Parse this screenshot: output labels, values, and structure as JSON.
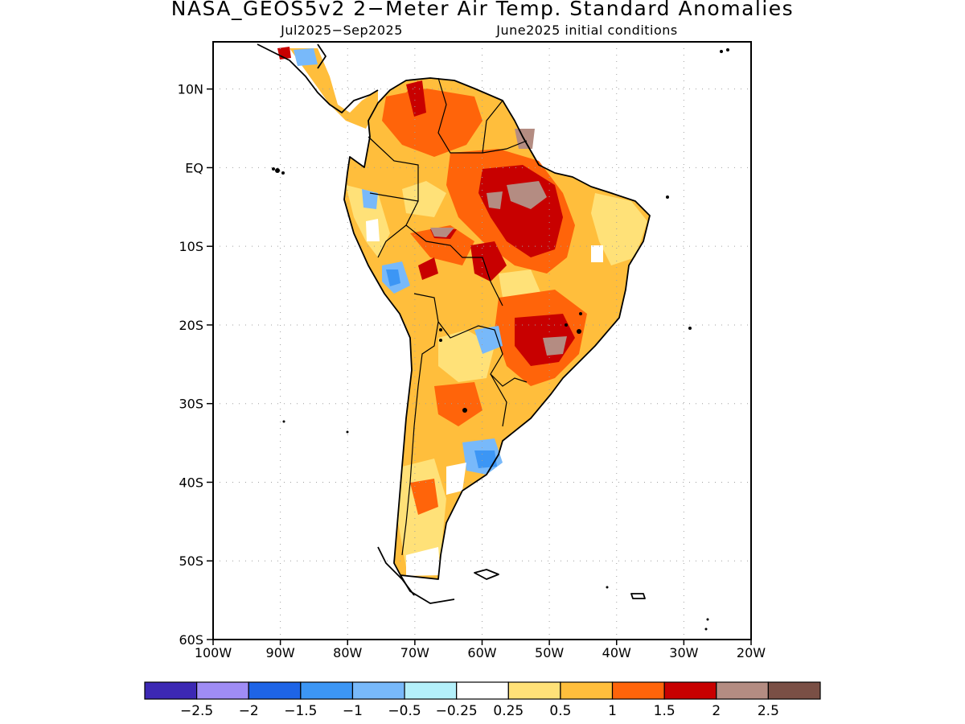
{
  "title": "NASA_GEOS5v2 2−Meter Air Temp. Standard Anomalies",
  "subtitle_left": "Jul2025−Sep2025",
  "subtitle_right": "June2025 initial conditions",
  "map": {
    "lon_range": [
      -100,
      -20
    ],
    "lat_range": [
      -60,
      16
    ],
    "lat_ticks": [
      {
        "lat": 10,
        "label": "10N"
      },
      {
        "lat": 0,
        "label": "EQ"
      },
      {
        "lat": -10,
        "label": "10S"
      },
      {
        "lat": -20,
        "label": "20S"
      },
      {
        "lat": -30,
        "label": "30S"
      },
      {
        "lat": -40,
        "label": "40S"
      },
      {
        "lat": -50,
        "label": "50S"
      },
      {
        "lat": -60,
        "label": "60S"
      }
    ],
    "lon_ticks": [
      {
        "lon": -100,
        "label": "100W"
      },
      {
        "lon": -90,
        "label": "90W"
      },
      {
        "lon": -80,
        "label": "80W"
      },
      {
        "lon": -70,
        "label": "70W"
      },
      {
        "lon": -60,
        "label": "60W"
      },
      {
        "lon": -50,
        "label": "50W"
      },
      {
        "lon": -40,
        "label": "40W"
      },
      {
        "lon": -30,
        "label": "30W"
      },
      {
        "lon": -20,
        "label": "20W"
      }
    ],
    "grid": "dotted"
  },
  "colorbar": {
    "colors": [
      "#3c28b4",
      "#9f8cf5",
      "#1e64e6",
      "#3c96f5",
      "#78b9fa",
      "#b4f0fa",
      "#ffffff",
      "#ffe178",
      "#ffbe3c",
      "#ff640a",
      "#c80000",
      "#b48c82",
      "#7a4f45"
    ],
    "labels": [
      "−2.5",
      "−2",
      "−1.5",
      "−1",
      "−0.5",
      "−0.25",
      "0.25",
      "0.5",
      "1",
      "1.5",
      "2",
      "2.5"
    ]
  }
}
